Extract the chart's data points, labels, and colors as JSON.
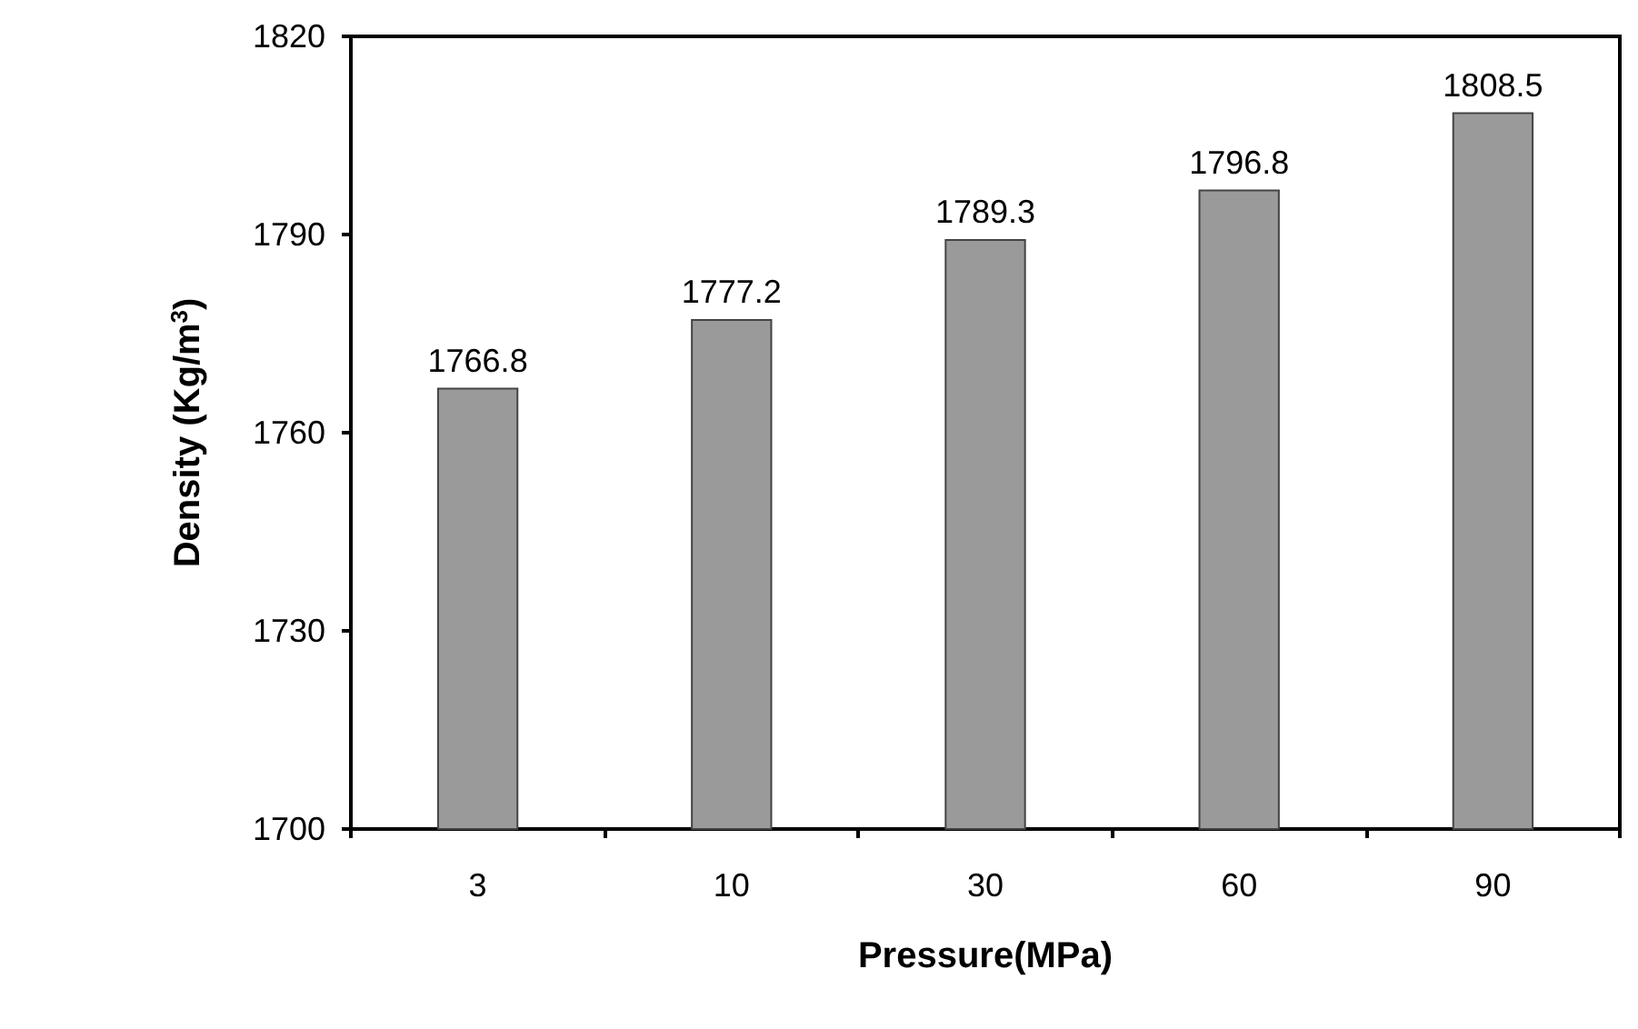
{
  "chart_data": {
    "type": "bar",
    "xlabel": "Pressure(MPa)",
    "ylabel": "Density (Kg/m$^{3}$)",
    "categories": [
      "3",
      "10",
      "30",
      "60",
      "90"
    ],
    "values": [
      1766.8,
      1777.2,
      1789.3,
      1796.8,
      1808.5
    ],
    "color": "#9a9a9a",
    "ylim": [
      1700,
      1820
    ],
    "yticks": [
      1700,
      1730,
      1760,
      1790,
      1820
    ],
    "data_labels": true,
    "grid": false
  }
}
